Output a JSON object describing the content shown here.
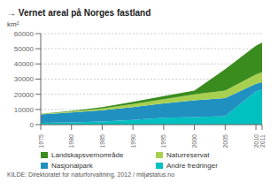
{
  "chart_data": {
    "type": "area",
    "title": "→ Vernet areal på Norges fastland",
    "y_label": "km²",
    "source": "KILDE: Direktoratet for naturforvaltning, 2012 / miljøstatus.no",
    "x": [
      1975,
      1980,
      1985,
      1990,
      1995,
      2000,
      2005,
      2010,
      2011
    ],
    "xlim": [
      1975,
      2011
    ],
    "xticks": [
      1975,
      1980,
      1985,
      1990,
      1995,
      2000,
      2005,
      2010,
      2011
    ],
    "ylim": [
      0,
      60000
    ],
    "yticks": [
      0,
      10000,
      20000,
      30000,
      40000,
      50000,
      60000
    ],
    "stacked": true,
    "grid": true,
    "legend": "bottom",
    "series": [
      {
        "name": "Andre fredringer",
        "color": "#00c0c0",
        "values": [
          1200,
          1500,
          2000,
          3000,
          4500,
          5000,
          5500,
          22000,
          23000
        ]
      },
      {
        "name": "Nasjonalpark",
        "color": "#2090c0",
        "values": [
          5500,
          6500,
          7500,
          8500,
          9500,
          11000,
          12000,
          5000,
          5000
        ]
      },
      {
        "name": "Naturreservat",
        "color": "#a8d050",
        "values": [
          300,
          600,
          1200,
          2000,
          2800,
          4000,
          5000,
          6000,
          6500
        ]
      },
      {
        "name": "Landskapsvernområde",
        "color": "#3a8c1e",
        "values": [
          200,
          400,
          800,
          1500,
          2000,
          2500,
          14000,
          19000,
          19500
        ]
      }
    ]
  }
}
